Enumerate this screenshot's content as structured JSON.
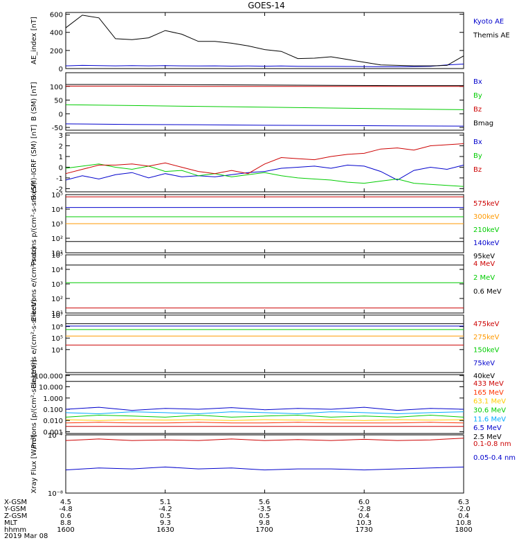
{
  "title": "GOES-14",
  "ephemeris": {
    "row_labels": [
      "X-GSM",
      "Y-GSM",
      "Z-GSM",
      "MLT",
      "hhmm"
    ],
    "columns": [
      [
        "4.5",
        "-4.8",
        "0.6",
        "8.8",
        "1600"
      ],
      [
        "5.1",
        "-4.2",
        "0.5",
        "9.3",
        "1630"
      ],
      [
        "5.6",
        "-3.5",
        "0.5",
        "9.8",
        "1700"
      ],
      [
        "6.0",
        "-2.8",
        "0.4",
        "10.3",
        "1730"
      ],
      [
        "6.3",
        "-2.0",
        "0.4",
        "10.8",
        "1800"
      ]
    ],
    "date": "2019 Mar 08"
  },
  "chart_data": [
    {
      "type": "line",
      "ylabel": "AE_index [nT]",
      "ylim": [
        0,
        620
      ],
      "yscale": "linear",
      "ticks": [
        {
          "v": 0,
          "t": "0"
        },
        {
          "v": 200,
          "t": "200"
        },
        {
          "v": 400,
          "t": "400"
        },
        {
          "v": 600,
          "t": "600"
        }
      ],
      "x": [
        1600,
        1605,
        1610,
        1615,
        1620,
        1625,
        1630,
        1635,
        1640,
        1645,
        1650,
        1655,
        1700,
        1705,
        1710,
        1715,
        1720,
        1725,
        1730,
        1735,
        1740,
        1745,
        1750,
        1755,
        1800
      ],
      "series": [
        {
          "name": "Kyoto AE",
          "color": "#0000cc",
          "values": [
            30,
            35,
            32,
            30,
            33,
            30,
            32,
            30,
            28,
            30,
            27,
            28,
            26,
            28,
            25,
            24,
            24,
            23,
            22,
            20,
            20,
            22,
            25,
            40,
            50
          ]
        },
        {
          "name": "Themis AE",
          "color": "#000000",
          "values": [
            450,
            590,
            560,
            330,
            320,
            340,
            420,
            380,
            300,
            300,
            280,
            250,
            210,
            190,
            110,
            115,
            130,
            100,
            70,
            40,
            35,
            30,
            30,
            35,
            140
          ]
        }
      ]
    },
    {
      "type": "line",
      "ylabel": "B (SM) [nT]",
      "ylim": [
        -60,
        150
      ],
      "yscale": "linear",
      "ticks": [
        {
          "v": -50,
          "t": "-50"
        },
        {
          "v": 0,
          "t": "0"
        },
        {
          "v": 50,
          "t": "50"
        },
        {
          "v": 100,
          "t": "100"
        }
      ],
      "x": [
        1600,
        1620,
        1640,
        1700,
        1720,
        1740,
        1800
      ],
      "series": [
        {
          "name": "Bx",
          "color": "#0000cc",
          "values": [
            -37,
            -39,
            -40,
            -42,
            -43,
            -44,
            -45
          ]
        },
        {
          "name": "By",
          "color": "#00cc00",
          "values": [
            33,
            30,
            27,
            24,
            21,
            18,
            15
          ]
        },
        {
          "name": "Bz",
          "color": "#cc0000",
          "values": [
            101,
            101,
            100,
            100,
            100,
            100,
            100
          ]
        },
        {
          "name": "Bmag",
          "color": "#000000",
          "values": [
            107,
            107,
            106,
            105,
            104,
            103,
            103
          ]
        }
      ]
    },
    {
      "type": "line",
      "ylabel": "B (SM)-IGRF (SM) [nT]",
      "ylim": [
        -2.3,
        3.2
      ],
      "yscale": "linear",
      "ticks": [
        {
          "v": -2,
          "t": "-2"
        },
        {
          "v": -1,
          "t": "-1"
        },
        {
          "v": 0,
          "t": "0"
        },
        {
          "v": 1,
          "t": "1"
        },
        {
          "v": 2,
          "t": "2"
        },
        {
          "v": 3,
          "t": "3"
        }
      ],
      "x": [
        1600,
        1605,
        1610,
        1615,
        1620,
        1625,
        1630,
        1635,
        1640,
        1645,
        1650,
        1655,
        1700,
        1705,
        1710,
        1715,
        1720,
        1725,
        1730,
        1735,
        1740,
        1745,
        1750,
        1755,
        1800
      ],
      "series": [
        {
          "name": "Bx",
          "color": "#0000cc",
          "values": [
            -1.2,
            -0.8,
            -1.1,
            -0.7,
            -0.5,
            -1.0,
            -0.6,
            -0.9,
            -0.8,
            -0.9,
            -0.7,
            -0.5,
            -0.4,
            -0.1,
            0.0,
            0.1,
            -0.1,
            0.2,
            0.1,
            -0.4,
            -1.2,
            -0.3,
            0.0,
            -0.2,
            0.2
          ]
        },
        {
          "name": "By",
          "color": "#00cc00",
          "values": [
            -0.1,
            0.1,
            0.3,
            0.0,
            -0.2,
            0.1,
            -0.4,
            -0.3,
            -0.8,
            -0.6,
            -0.9,
            -0.7,
            -0.5,
            -0.8,
            -1.0,
            -1.1,
            -1.2,
            -1.4,
            -1.5,
            -1.3,
            -1.1,
            -1.5,
            -1.6,
            -1.7,
            -1.8
          ]
        },
        {
          "name": "Bz",
          "color": "#cc0000",
          "values": [
            -0.6,
            -0.2,
            0.2,
            0.2,
            0.3,
            0.1,
            0.4,
            0.0,
            -0.4,
            -0.6,
            -0.3,
            -0.6,
            0.3,
            0.9,
            0.8,
            0.7,
            1.0,
            1.2,
            1.3,
            1.7,
            1.8,
            1.6,
            2.0,
            2.1,
            2.2
          ]
        }
      ]
    },
    {
      "type": "line",
      "ylabel": "Protons p/(cm²-s-sr-keV)",
      "ylim": [
        10,
        100000
      ],
      "yscale": "log",
      "ticks": [
        {
          "v": 10,
          "t": "10¹"
        },
        {
          "v": 100,
          "t": "10²"
        },
        {
          "v": 1000,
          "t": "10³"
        },
        {
          "v": 10000,
          "t": "10⁴"
        },
        {
          "v": 100000,
          "t": "10⁵"
        }
      ],
      "x": [
        1600,
        1630,
        1700,
        1730,
        1800
      ],
      "series": [
        {
          "name": "575keV",
          "color": "#cc0000",
          "values": [
            70000,
            70000,
            70000,
            70000,
            70000
          ]
        },
        {
          "name": "300keV",
          "color": "#ff9900",
          "values": [
            1000,
            1000,
            1000,
            1000,
            1000
          ]
        },
        {
          "name": "210keV",
          "color": "#00cc00",
          "values": [
            3000,
            3000,
            3000,
            3000,
            3000
          ]
        },
        {
          "name": "140keV",
          "color": "#0000cc",
          "values": [
            13000,
            13000,
            13000,
            13000,
            13000
          ]
        },
        {
          "name": "95keV",
          "color": "#000000",
          "values": [
            60,
            60,
            60,
            60,
            60
          ]
        }
      ]
    },
    {
      "type": "line",
      "ylabel": "Electrons e/(cm²-s-sr)",
      "ylim": [
        10,
        100000
      ],
      "yscale": "log",
      "ticks": [
        {
          "v": 10,
          "t": "10¹"
        },
        {
          "v": 100,
          "t": "10²"
        },
        {
          "v": 1000,
          "t": "10³"
        },
        {
          "v": 10000,
          "t": "10⁴"
        },
        {
          "v": 100000,
          "t": "10⁵"
        }
      ],
      "x": [
        1600,
        1630,
        1700,
        1730,
        1800
      ],
      "series": [
        {
          "name": "4 MeV",
          "color": "#cc0000",
          "values": [
            22,
            22,
            22,
            22,
            22
          ]
        },
        {
          "name": "2 MeV",
          "color": "#00cc00",
          "values": [
            1200,
            1200,
            1200,
            1200,
            1200
          ]
        },
        {
          "name": "0.6 MeV",
          "color": "#000000",
          "values": [
            20000,
            20000,
            20000,
            20000,
            20000
          ]
        }
      ]
    },
    {
      "type": "line",
      "ylabel": "Electrons e/(cm²-s-sr-keV)",
      "ylim": [
        100,
        10000000
      ],
      "yscale": "log",
      "ticks": [
        {
          "v": 10000,
          "t": "10⁴"
        },
        {
          "v": 100000,
          "t": "10⁵"
        },
        {
          "v": 1000000,
          "t": "10⁶"
        },
        {
          "v": 10000000,
          "t": "10⁷"
        }
      ],
      "x": [
        1600,
        1630,
        1700,
        1730,
        1800
      ],
      "series": [
        {
          "name": "475keV",
          "color": "#cc0000",
          "values": [
            25000,
            25000,
            25000,
            25000,
            25000
          ]
        },
        {
          "name": "275keV",
          "color": "#ff9900",
          "values": [
            150000,
            150000,
            150000,
            150000,
            150000
          ]
        },
        {
          "name": "150keV",
          "color": "#00cc00",
          "values": [
            550000,
            550000,
            550000,
            550000,
            550000
          ]
        },
        {
          "name": "75keV",
          "color": "#0000cc",
          "values": [
            1100000,
            1100000,
            1100000,
            1100000,
            1100000
          ]
        },
        {
          "name": "40keV",
          "color": "#000000",
          "values": [
            1800000,
            1800000,
            1800000,
            1800000,
            1800000
          ]
        }
      ]
    },
    {
      "type": "line",
      "ylabel": "Protons [p/(cm²-s-sr-keV)]",
      "ylim": [
        0.0007,
        120
      ],
      "yscale": "log",
      "ticks": [
        {
          "v": 0.001,
          "t": "0.001"
        },
        {
          "v": 0.01,
          "t": "0.010"
        },
        {
          "v": 0.1,
          "t": "0.100"
        },
        {
          "v": 1,
          "t": "1.000"
        },
        {
          "v": 10,
          "t": "10.000"
        },
        {
          "v": 100,
          "t": "100.000"
        }
      ],
      "x": [
        1600,
        1610,
        1620,
        1630,
        1640,
        1650,
        1700,
        1710,
        1720,
        1730,
        1740,
        1750,
        1800
      ],
      "series": [
        {
          "name": "433 MeV",
          "color": "#cc0000",
          "values": [
            0.003,
            0.003,
            0.003,
            0.003,
            0.003,
            0.003,
            0.003,
            0.003,
            0.003,
            0.003,
            0.003,
            0.003,
            0.003
          ]
        },
        {
          "name": "165 MeV",
          "color": "#ff3300",
          "values": [
            0.006,
            0.007,
            0.006,
            0.006,
            0.007,
            0.006,
            0.006,
            0.007,
            0.006,
            0.006,
            0.006,
            0.007,
            0.006
          ]
        },
        {
          "name": "63.1 MeV",
          "color": "#ffcc00",
          "values": [
            0.012,
            0.01,
            0.012,
            0.011,
            0.012,
            0.01,
            0.012,
            0.011,
            0.012,
            0.01,
            0.012,
            0.011,
            0.012
          ]
        },
        {
          "name": "30.6 MeV",
          "color": "#00cc00",
          "values": [
            0.02,
            0.03,
            0.025,
            0.02,
            0.03,
            0.02,
            0.025,
            0.03,
            0.02,
            0.025,
            0.02,
            0.03,
            0.02
          ]
        },
        {
          "name": "11.6 MeV",
          "color": "#00aaff",
          "values": [
            0.05,
            0.04,
            0.06,
            0.05,
            0.04,
            0.06,
            0.05,
            0.04,
            0.06,
            0.05,
            0.04,
            0.05,
            0.06
          ]
        },
        {
          "name": "6.5 MeV",
          "color": "#0000cc",
          "values": [
            0.1,
            0.15,
            0.08,
            0.12,
            0.1,
            0.14,
            0.09,
            0.12,
            0.1,
            0.15,
            0.08,
            0.12,
            0.1
          ]
        },
        {
          "name": "2.5 MeV",
          "color": "#000000",
          "values": [
            30,
            30,
            30,
            30,
            30,
            30,
            30,
            30,
            30,
            30,
            30,
            30,
            30
          ]
        }
      ]
    },
    {
      "type": "line",
      "ylabel": "Xray Flux [W/m²]",
      "ylim": [
        1e-08,
        1e-07
      ],
      "yscale": "log",
      "ticks": [
        {
          "v": 1e-08,
          "t": "10⁻⁸"
        },
        {
          "v": 1e-07,
          "t": "10⁻⁷"
        }
      ],
      "x": [
        1600,
        1610,
        1620,
        1630,
        1640,
        1650,
        1700,
        1710,
        1720,
        1730,
        1740,
        1750,
        1800
      ],
      "series": [
        {
          "name": "0.1-0.8 nm",
          "color": "#cc0000",
          "values": [
            8e-08,
            8.5e-08,
            8e-08,
            8.2e-08,
            8e-08,
            8.5e-08,
            8e-08,
            8.3e-08,
            8e-08,
            8.4e-08,
            8e-08,
            8.2e-08,
            8.8e-08
          ]
        },
        {
          "name": "0.05-0.4 nm",
          "color": "#0000cc",
          "values": [
            2.5e-08,
            2.7e-08,
            2.6e-08,
            2.8e-08,
            2.6e-08,
            2.7e-08,
            2.5e-08,
            2.6e-08,
            2.6e-08,
            2.5e-08,
            2.6e-08,
            2.7e-08,
            2.8e-08
          ]
        }
      ]
    }
  ]
}
